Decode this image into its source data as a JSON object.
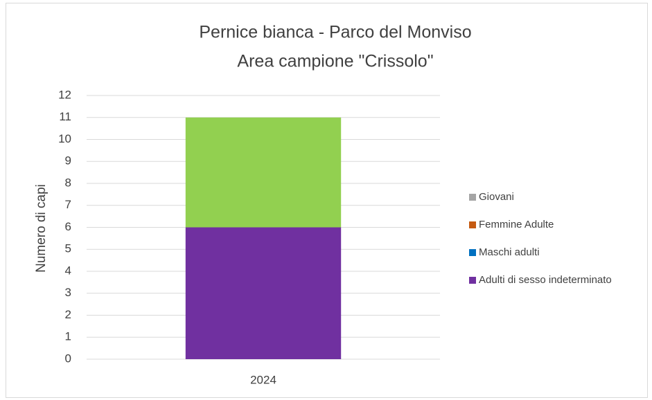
{
  "chart_data": {
    "type": "stacked_bar",
    "title": "Pernice bianca - Parco del Monviso",
    "subtitle": "Area campione \"Crissolo\"",
    "y_label": "Numero di capi",
    "categories": [
      "2024"
    ],
    "series": [
      {
        "name": "Adulti di sesso indeterminato",
        "color": "#7030a0",
        "values": [
          6
        ]
      },
      {
        "name": "Maschi adulti",
        "color": "#0070c0",
        "values": [
          0
        ]
      },
      {
        "name": "Femmine Adulte",
        "color": "#c55a11",
        "values": [
          0
        ]
      },
      {
        "name": "Giovani",
        "color": "#a5a5a5",
        "values": [
          0
        ]
      },
      {
        "color": "#92d050",
        "values": [
          5
        ]
      }
    ],
    "ylim": [
      0,
      12
    ],
    "yticks": [
      0,
      1,
      2,
      3,
      4,
      5,
      6,
      7,
      8,
      9,
      10,
      11,
      12
    ],
    "grid": true
  }
}
